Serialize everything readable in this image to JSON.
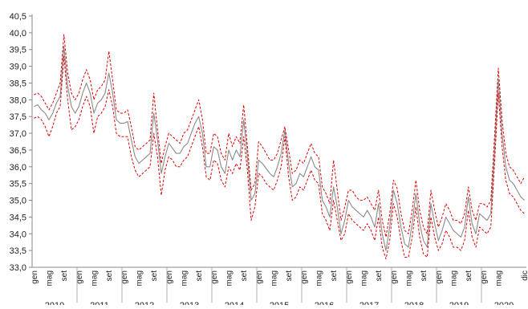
{
  "chart_data": {
    "type": "line",
    "title": "",
    "xlabel": "",
    "ylabel": "",
    "ylim": [
      33.0,
      40.5
    ],
    "y_ticks": [
      "33,0",
      "33,5",
      "34,0",
      "34,5",
      "35,0",
      "35,5",
      "36,0",
      "36,5",
      "37,0",
      "37,5",
      "38,0",
      "38,5",
      "39,0",
      "39,5",
      "40,0",
      "40,5"
    ],
    "grid": false,
    "legend": "none",
    "month_tick_labels": [
      "gen",
      "mag",
      "set"
    ],
    "last_month_tick_labels": [
      "gen",
      "mag",
      "dic"
    ],
    "years": [
      "2010",
      "2011",
      "2012",
      "2013",
      "2014",
      "2015",
      "2016",
      "2017",
      "2018",
      "2019",
      "2020"
    ],
    "x_start": "2010-01",
    "x_end": "2020-12",
    "colors": {
      "estimate": "#8a8a8a",
      "bounds": "#e00000",
      "axis": "#888888"
    },
    "series": [
      {
        "role": "estimate",
        "style": "solid",
        "values": [
          37.8,
          37.85,
          37.7,
          37.6,
          37.4,
          37.6,
          37.9,
          38.1,
          39.6,
          38.4,
          37.8,
          37.6,
          37.8,
          38.2,
          38.5,
          38.2,
          37.6,
          37.9,
          38.0,
          38.2,
          38.8,
          38.2,
          37.4,
          37.3,
          37.3,
          37.35,
          36.8,
          36.3,
          36.1,
          36.2,
          36.3,
          36.4,
          37.6,
          36.8,
          35.8,
          36.3,
          36.7,
          36.55,
          36.4,
          36.4,
          36.6,
          36.7,
          37.0,
          37.3,
          37.5,
          37.0,
          36.0,
          36.0,
          36.6,
          36.5,
          36.0,
          35.8,
          36.5,
          36.2,
          36.5,
          36.3,
          37.4,
          36.3,
          35.0,
          35.2,
          36.2,
          36.1,
          35.95,
          35.8,
          35.7,
          36.0,
          36.4,
          37.1,
          36.1,
          35.4,
          35.5,
          35.8,
          35.7,
          36.0,
          36.3,
          36.0,
          35.9,
          35.0,
          34.8,
          34.5,
          35.4,
          34.8,
          34.0,
          34.4,
          35.0,
          34.8,
          34.7,
          34.6,
          34.5,
          34.7,
          34.5,
          34.2,
          34.9,
          34.0,
          33.5,
          34.2,
          35.3,
          34.9,
          34.2,
          33.7,
          33.6,
          34.3,
          35.2,
          34.3,
          33.8,
          33.6,
          34.9,
          34.3,
          33.8,
          34.1,
          34.5,
          34.3,
          34.1,
          34.0,
          33.9,
          34.2,
          35.1,
          34.3,
          34.0,
          34.6,
          34.5,
          34.4,
          34.6,
          36.5,
          38.6,
          37.0,
          36.0,
          35.6,
          35.5,
          35.3,
          35.1,
          35.0
        ]
      },
      {
        "role": "upper-bound",
        "style": "dashed",
        "values": [
          38.15,
          38.2,
          38.1,
          37.9,
          37.7,
          37.9,
          38.2,
          38.5,
          39.95,
          38.8,
          38.2,
          38.0,
          38.2,
          38.6,
          38.9,
          38.6,
          38.0,
          38.3,
          38.4,
          38.6,
          39.45,
          38.6,
          37.7,
          37.6,
          37.6,
          37.7,
          37.2,
          36.6,
          36.5,
          36.6,
          36.7,
          36.8,
          38.2,
          37.1,
          36.1,
          36.6,
          37.0,
          36.9,
          36.8,
          36.7,
          37.0,
          37.1,
          37.4,
          37.7,
          38.0,
          37.4,
          36.4,
          36.4,
          37.0,
          36.9,
          36.4,
          36.2,
          37.0,
          36.6,
          36.9,
          36.7,
          37.85,
          36.6,
          35.3,
          35.5,
          36.75,
          36.6,
          36.4,
          36.2,
          36.2,
          36.4,
          36.8,
          37.2,
          36.5,
          35.8,
          35.9,
          36.2,
          36.1,
          36.4,
          36.7,
          36.4,
          36.3,
          35.4,
          35.2,
          34.9,
          36.2,
          35.3,
          34.4,
          34.8,
          35.3,
          35.3,
          35.1,
          35.0,
          35.0,
          35.1,
          34.9,
          34.7,
          35.3,
          34.4,
          33.9,
          34.6,
          35.6,
          35.35,
          34.6,
          34.1,
          34.0,
          34.7,
          35.6,
          34.7,
          34.2,
          34.0,
          35.3,
          34.7,
          34.2,
          34.5,
          34.9,
          34.7,
          34.4,
          34.4,
          34.3,
          34.6,
          35.4,
          34.7,
          34.4,
          34.9,
          34.9,
          34.8,
          35.0,
          36.9,
          38.95,
          37.4,
          36.4,
          36.0,
          35.9,
          35.7,
          35.5,
          35.7
        ]
      },
      {
        "role": "lower-bound",
        "style": "dashed",
        "values": [
          37.45,
          37.5,
          37.4,
          37.2,
          36.9,
          37.2,
          37.6,
          37.8,
          39.3,
          38.0,
          37.1,
          37.2,
          37.4,
          37.8,
          38.1,
          37.8,
          37.0,
          37.5,
          37.6,
          37.8,
          38.3,
          37.8,
          37.0,
          36.9,
          36.9,
          36.9,
          36.3,
          35.9,
          35.7,
          35.8,
          35.9,
          36.0,
          37.0,
          36.3,
          35.15,
          35.9,
          36.3,
          36.2,
          36.0,
          36.0,
          36.2,
          36.3,
          36.6,
          36.9,
          37.2,
          36.6,
          35.7,
          35.6,
          36.2,
          36.1,
          35.6,
          35.4,
          36.0,
          35.8,
          36.1,
          35.9,
          36.9,
          35.9,
          34.4,
          34.8,
          35.8,
          35.7,
          35.5,
          35.4,
          35.3,
          35.6,
          36.0,
          36.9,
          35.7,
          35.0,
          35.1,
          35.4,
          35.3,
          35.6,
          35.9,
          35.6,
          35.5,
          34.6,
          34.4,
          34.1,
          35.0,
          34.4,
          33.8,
          34.0,
          34.6,
          34.4,
          34.3,
          34.2,
          34.1,
          34.3,
          34.1,
          33.8,
          34.5,
          33.6,
          33.25,
          33.8,
          34.9,
          34.5,
          33.8,
          33.3,
          33.3,
          33.9,
          34.8,
          33.9,
          33.4,
          33.3,
          34.5,
          33.9,
          33.5,
          33.7,
          34.1,
          33.9,
          33.6,
          33.6,
          33.5,
          33.8,
          34.7,
          33.9,
          33.6,
          34.2,
          34.1,
          34.0,
          34.2,
          36.1,
          38.2,
          36.6,
          35.6,
          35.2,
          35.1,
          34.9,
          34.7,
          34.6
        ]
      }
    ]
  }
}
